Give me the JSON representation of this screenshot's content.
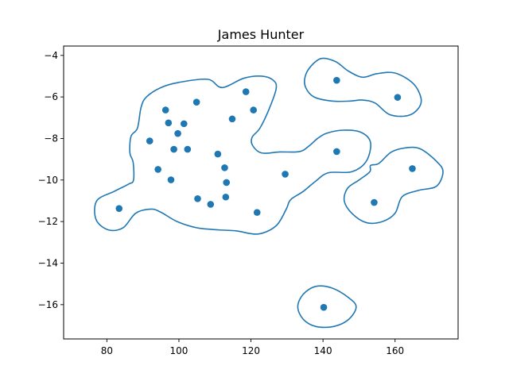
{
  "chart_data": {
    "type": "scatter",
    "title": "James Hunter",
    "xlabel": "",
    "ylabel": "",
    "xlim": [
      68.0,
      177.5
    ],
    "ylim": [
      -17.65,
      -3.55
    ],
    "xticks": [
      80,
      100,
      120,
      140,
      160
    ],
    "xtick_labels": [
      "80",
      "100",
      "120",
      "140",
      "160"
    ],
    "yticks": [
      -4,
      -6,
      -8,
      -10,
      -12,
      -14,
      -16
    ],
    "ytick_labels": [
      "−4",
      "−6",
      "−8",
      "−10",
      "−12",
      "−14",
      "−16"
    ],
    "grid": false,
    "color": "#1f77b4",
    "points": [
      {
        "x": 83.4,
        "y": -11.37
      },
      {
        "x": 91.9,
        "y": -8.12
      },
      {
        "x": 94.2,
        "y": -9.49
      },
      {
        "x": 96.3,
        "y": -6.63
      },
      {
        "x": 97.1,
        "y": -7.25
      },
      {
        "x": 97.8,
        "y": -9.99
      },
      {
        "x": 98.6,
        "y": -8.52
      },
      {
        "x": 99.7,
        "y": -7.76
      },
      {
        "x": 101.4,
        "y": -7.29
      },
      {
        "x": 102.4,
        "y": -8.52
      },
      {
        "x": 104.9,
        "y": -6.25
      },
      {
        "x": 105.2,
        "y": -10.9
      },
      {
        "x": 108.8,
        "y": -11.17
      },
      {
        "x": 110.8,
        "y": -8.75
      },
      {
        "x": 112.7,
        "y": -9.41
      },
      {
        "x": 113.0,
        "y": -10.82
      },
      {
        "x": 113.2,
        "y": -10.12
      },
      {
        "x": 114.8,
        "y": -7.06
      },
      {
        "x": 118.6,
        "y": -5.75
      },
      {
        "x": 120.7,
        "y": -6.63
      },
      {
        "x": 121.7,
        "y": -11.56
      },
      {
        "x": 129.5,
        "y": -9.72
      },
      {
        "x": 140.2,
        "y": -16.13
      },
      {
        "x": 143.8,
        "y": -5.2
      },
      {
        "x": 143.8,
        "y": -8.63
      },
      {
        "x": 154.2,
        "y": -11.08
      },
      {
        "x": 160.7,
        "y": -6.02
      },
      {
        "x": 164.8,
        "y": -9.45
      }
    ],
    "contours": [
      [
        [
          86,
          -10.2
        ],
        [
          82,
          -10.55
        ],
        [
          77.2,
          -11.0
        ],
        [
          77.0,
          -11.9
        ],
        [
          80.4,
          -12.4
        ],
        [
          84.5,
          -12.3
        ],
        [
          88.0,
          -11.6
        ],
        [
          92.2,
          -11.4
        ],
        [
          95.0,
          -11.55
        ],
        [
          99.5,
          -12.0
        ],
        [
          105.0,
          -12.3
        ],
        [
          111.0,
          -12.4
        ],
        [
          116.0,
          -12.45
        ],
        [
          122.0,
          -12.6
        ],
        [
          127.0,
          -12.2
        ],
        [
          129.8,
          -11.4
        ],
        [
          131.0,
          -10.95
        ],
        [
          134.5,
          -10.55
        ],
        [
          138.0,
          -10.05
        ],
        [
          141.5,
          -9.65
        ],
        [
          148.0,
          -9.6
        ],
        [
          152.0,
          -9.1
        ],
        [
          153.2,
          -8.2
        ],
        [
          150.5,
          -7.7
        ],
        [
          145.5,
          -7.6
        ],
        [
          141.0,
          -7.75
        ],
        [
          138.5,
          -8.0
        ],
        [
          136.2,
          -8.35
        ],
        [
          133.5,
          -8.63
        ],
        [
          128.0,
          -8.65
        ],
        [
          123.0,
          -8.7
        ],
        [
          120.5,
          -8.35
        ],
        [
          120.3,
          -7.95
        ],
        [
          122.5,
          -7.5
        ],
        [
          125.0,
          -6.6
        ],
        [
          127.0,
          -5.6
        ],
        [
          126.2,
          -5.2
        ],
        [
          123.0,
          -5.0
        ],
        [
          118.0,
          -5.1
        ],
        [
          112.0,
          -5.55
        ],
        [
          108.0,
          -5.15
        ],
        [
          100.0,
          -5.3
        ],
        [
          95.0,
          -5.55
        ],
        [
          91.0,
          -6.0
        ],
        [
          89.5,
          -6.5
        ],
        [
          88.5,
          -7.5
        ],
        [
          86.7,
          -7.9
        ],
        [
          86.4,
          -8.7
        ],
        [
          87.3,
          -9.15
        ],
        [
          87.4,
          -10.0
        ],
        [
          86,
          -10.2
        ]
      ],
      [
        [
          135.0,
          -5.05
        ],
        [
          136.5,
          -4.55
        ],
        [
          139.5,
          -4.15
        ],
        [
          143.5,
          -4.3
        ],
        [
          147.0,
          -4.75
        ],
        [
          151.0,
          -5.05
        ],
        [
          155.0,
          -4.88
        ],
        [
          160.0,
          -4.85
        ],
        [
          165.0,
          -5.35
        ],
        [
          167.2,
          -6.05
        ],
        [
          166.5,
          -6.55
        ],
        [
          163.5,
          -6.9
        ],
        [
          158.5,
          -6.85
        ],
        [
          154.5,
          -6.3
        ],
        [
          151.0,
          -6.15
        ],
        [
          147.5,
          -6.2
        ],
        [
          142.5,
          -6.2
        ],
        [
          137.5,
          -6.0
        ],
        [
          135.2,
          -5.55
        ],
        [
          135.0,
          -5.05
        ]
      ],
      [
        [
          153.2,
          -9.3
        ],
        [
          155.5,
          -9.2
        ],
        [
          159.0,
          -8.65
        ],
        [
          163.0,
          -8.45
        ],
        [
          167.0,
          -8.5
        ],
        [
          171.5,
          -9.1
        ],
        [
          173.3,
          -9.6
        ],
        [
          171.5,
          -10.3
        ],
        [
          166.5,
          -10.5
        ],
        [
          162.0,
          -10.8
        ],
        [
          160.0,
          -11.6
        ],
        [
          156.5,
          -12.0
        ],
        [
          152.0,
          -12.05
        ],
        [
          148.0,
          -11.6
        ],
        [
          145.9,
          -11.0
        ],
        [
          146.8,
          -10.4
        ],
        [
          150.0,
          -10.0
        ],
        [
          153.0,
          -9.6
        ],
        [
          153.2,
          -9.3
        ]
      ],
      [
        [
          133.0,
          -16.1
        ],
        [
          134.5,
          -15.5
        ],
        [
          138.0,
          -15.12
        ],
        [
          142.5,
          -15.2
        ],
        [
          147.0,
          -15.65
        ],
        [
          149.2,
          -16.1
        ],
        [
          147.2,
          -16.7
        ],
        [
          143.0,
          -17.05
        ],
        [
          138.0,
          -17.05
        ],
        [
          134.5,
          -16.7
        ],
        [
          133.0,
          -16.1
        ]
      ]
    ]
  }
}
